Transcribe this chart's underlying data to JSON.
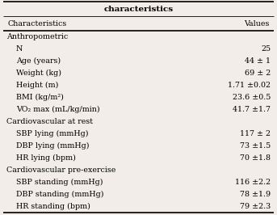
{
  "title": "characteristics",
  "col_headers": [
    "Characteristics",
    "Values"
  ],
  "rows": [
    {
      "label": "Anthropometric",
      "value": "",
      "indent": 0
    },
    {
      "label": "N",
      "value": "25",
      "indent": 1
    },
    {
      "label": "Age (years)",
      "value": "44 ± 1",
      "indent": 1
    },
    {
      "label": "Weight (kg)",
      "value": "69 ± 2",
      "indent": 1
    },
    {
      "label": "Height (m)",
      "value": "1.71 ±0.02",
      "indent": 1
    },
    {
      "label": "BMI (kg/m²)",
      "value": "23.6 ±0.5",
      "indent": 1
    },
    {
      "label": "VO₂ max (mL/kg/min)",
      "value": "41.7 ±1.7",
      "indent": 1
    },
    {
      "label": "Cardiovascular at rest",
      "value": "",
      "indent": 0
    },
    {
      "label": "SBP lying (mmHg)",
      "value": "117 ± 2",
      "indent": 1
    },
    {
      "label": "DBP lying (mmHg)",
      "value": "73 ±1.5",
      "indent": 1
    },
    {
      "label": "HR lying (bpm)",
      "value": "70 ±1.8",
      "indent": 1
    },
    {
      "label": "Cardiovascular pre-exercise",
      "value": "",
      "indent": 0
    },
    {
      "label": "SBP standing (mmHg)",
      "value": "116 ±2.2",
      "indent": 1
    },
    {
      "label": "DBP standing (mmHg)",
      "value": "78 ±1.9",
      "indent": 1
    },
    {
      "label": "HR standing (bpm)",
      "value": "79 ±2.3",
      "indent": 1
    }
  ],
  "bg_color": "#f2ede8",
  "font_size": 6.8,
  "title_font_size": 7.5,
  "lw_thick": 1.2,
  "lw_thin": 0.6
}
